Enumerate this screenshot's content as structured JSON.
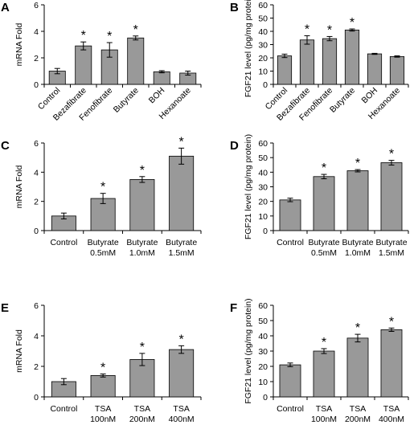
{
  "chart_data": [
    {
      "panel": "A",
      "type": "bar",
      "ylabel": "mRNA Fold",
      "ylim": [
        0,
        6
      ],
      "yticks": [
        0,
        2,
        4,
        6
      ],
      "categories": [
        [
          "Control"
        ],
        [
          "Bezafibrate"
        ],
        [
          "Fenofibrate"
        ],
        [
          "Butyrate"
        ],
        [
          "BOH"
        ],
        [
          "Hexanoate"
        ]
      ],
      "values": [
        1.0,
        2.9,
        2.6,
        3.5,
        0.95,
        0.85
      ],
      "errors": [
        0.2,
        0.3,
        0.55,
        0.15,
        0.08,
        0.15
      ],
      "significant": [
        false,
        true,
        true,
        true,
        false,
        false
      ],
      "marker": "*",
      "rotated_labels": true
    },
    {
      "panel": "B",
      "type": "bar",
      "ylabel": "FGF21 level (pg/mg protein)",
      "ylim": [
        0,
        60
      ],
      "yticks": [
        0,
        10,
        20,
        30,
        40,
        50,
        60
      ],
      "categories": [
        [
          "Control"
        ],
        [
          "Bezafibrate"
        ],
        [
          "Fenofibrate"
        ],
        [
          "Butyrate"
        ],
        [
          "BOH"
        ],
        [
          "Hexanoate"
        ]
      ],
      "values": [
        21.5,
        33.5,
        34.5,
        41,
        23,
        21
      ],
      "errors": [
        1.3,
        3.2,
        1.6,
        0.8,
        0.4,
        0.5
      ],
      "significant": [
        false,
        true,
        true,
        true,
        false,
        false
      ],
      "marker": "*",
      "rotated_labels": true
    },
    {
      "panel": "C",
      "type": "bar",
      "ylabel": "mRNA Fold",
      "ylim": [
        0,
        6
      ],
      "yticks": [
        0,
        2,
        4,
        6
      ],
      "categories": [
        [
          "Control"
        ],
        [
          "Butyrate",
          "0.5mM"
        ],
        [
          "Butyrate",
          "1.0mM"
        ],
        [
          "Butyrate",
          "1.5mM"
        ]
      ],
      "values": [
        1.0,
        2.2,
        3.5,
        5.1
      ],
      "errors": [
        0.2,
        0.35,
        0.2,
        0.55
      ],
      "significant": [
        false,
        true,
        true,
        true
      ],
      "marker": "*",
      "rotated_labels": false
    },
    {
      "panel": "D",
      "type": "bar",
      "ylabel": "FGF21 level (pg/mg protein)",
      "ylim": [
        0,
        60
      ],
      "yticks": [
        0,
        10,
        20,
        30,
        40,
        50,
        60
      ],
      "categories": [
        [
          "Control"
        ],
        [
          "Butyrate",
          "0.5mM"
        ],
        [
          "Butyrate",
          "1.0mM"
        ],
        [
          "Butyrate",
          "1.5mM"
        ]
      ],
      "values": [
        21,
        37,
        41,
        46.5
      ],
      "errors": [
        1.2,
        1.5,
        0.8,
        1.6
      ],
      "significant": [
        false,
        true,
        true,
        true
      ],
      "marker": "*",
      "rotated_labels": false
    },
    {
      "panel": "E",
      "type": "bar",
      "ylabel": "mRNA Fold",
      "ylim": [
        0,
        6
      ],
      "yticks": [
        0,
        2,
        4,
        6
      ],
      "categories": [
        [
          "Control"
        ],
        [
          "TSA",
          "100nM"
        ],
        [
          "TSA",
          "200nM"
        ],
        [
          "TSA",
          "400nM"
        ]
      ],
      "values": [
        1.0,
        1.4,
        2.45,
        3.1
      ],
      "errors": [
        0.2,
        0.1,
        0.4,
        0.25
      ],
      "significant": [
        false,
        true,
        true,
        true
      ],
      "marker": "*",
      "rotated_labels": false
    },
    {
      "panel": "F",
      "type": "bar",
      "ylabel": "FGF21 level (pg/mg protein)",
      "ylim": [
        0,
        60
      ],
      "yticks": [
        0,
        10,
        20,
        30,
        40,
        50,
        60
      ],
      "categories": [
        [
          "Control"
        ],
        [
          "TSA",
          "100nM"
        ],
        [
          "TSA",
          "200nM"
        ],
        [
          "TSA",
          "400nM"
        ]
      ],
      "values": [
        21,
        30,
        38.5,
        44
      ],
      "errors": [
        1.2,
        1.6,
        2.5,
        1.1
      ],
      "significant": [
        false,
        true,
        true,
        true
      ],
      "marker": "*",
      "rotated_labels": false
    }
  ],
  "colors": {
    "bar_fill": "#999999",
    "bar_stroke": "#000000",
    "axis": "#000000"
  }
}
